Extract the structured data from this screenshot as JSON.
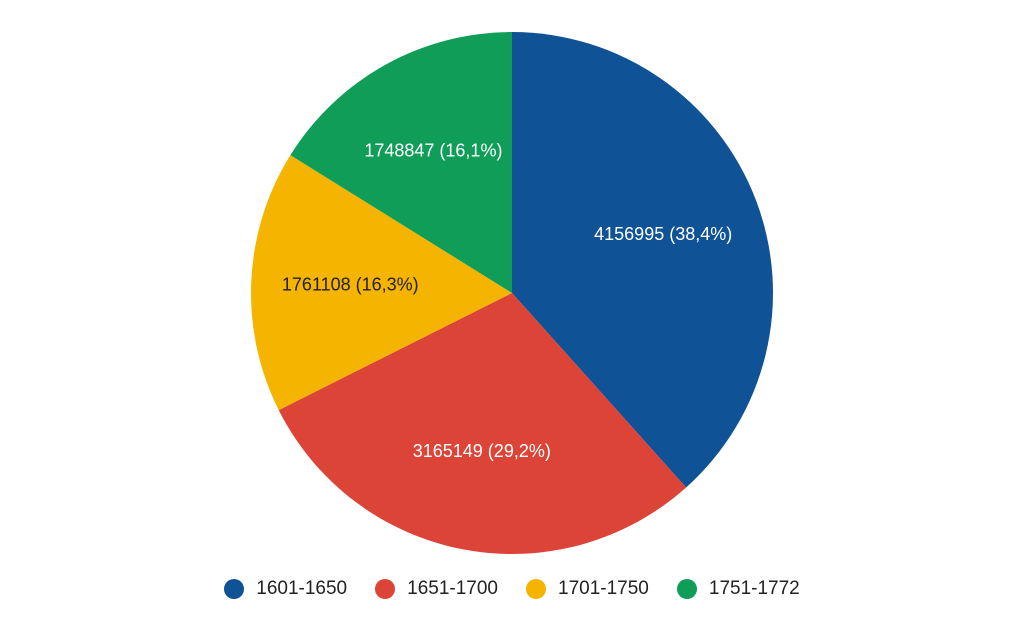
{
  "chart_data": {
    "type": "pie",
    "title": "",
    "legend_position": "bottom",
    "start_angle_deg": 0,
    "direction": "clockwise",
    "slices": [
      {
        "label": "1601-1650",
        "value": 4156995,
        "percent_text": "4156995 (38,4%)",
        "color": "#0f5296",
        "text_color": "#ffffff"
      },
      {
        "label": "1651-1700",
        "value": 3165149,
        "percent_text": "3165149 (29,2%)",
        "color": "#db4437",
        "text_color": "#ffffff"
      },
      {
        "label": "1701-1750",
        "value": 1761108,
        "percent_text": "1761108 (16,3%)",
        "color": "#f4b400",
        "text_color": "#222222"
      },
      {
        "label": "1751-1772",
        "value": 1748847,
        "percent_text": "1748847 (16,1%)",
        "color": "#0f9d58",
        "text_color": "#ffffff"
      }
    ]
  }
}
